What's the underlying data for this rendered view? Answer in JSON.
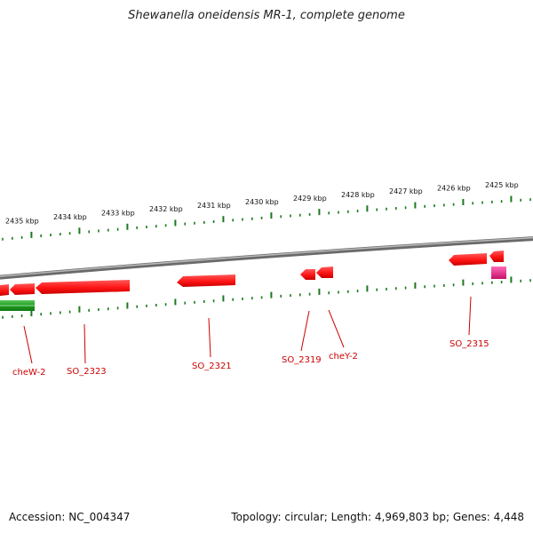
{
  "title": "Shewanella oneidensis MR-1, complete genome",
  "footer": {
    "accession": "Accession: NC_004347",
    "summary": "Topology: circular; Length: 4,969,803 bp; Genes: 4,448"
  },
  "kbp_labels": [
    "2435 kbp",
    "2434 kbp",
    "2433 kbp",
    "2432 kbp",
    "2431 kbp",
    "2430 kbp",
    "2429 kbp",
    "2428 kbp",
    "2427 kbp",
    "2426 kbp",
    "2425 kbp"
  ],
  "gene_labels": [
    "cheW-2",
    "SO_2323",
    "SO_2321",
    "SO_2319",
    "cheY-2",
    "SO_2315"
  ],
  "colors": {
    "gene_red": "#ff1a1a",
    "gene_magenta": "#e8208a",
    "gene_green": "#2a9a2a",
    "ticks": "#1a7a1a",
    "backbone": "#8a8a8a",
    "label_red": "#cc0000"
  }
}
